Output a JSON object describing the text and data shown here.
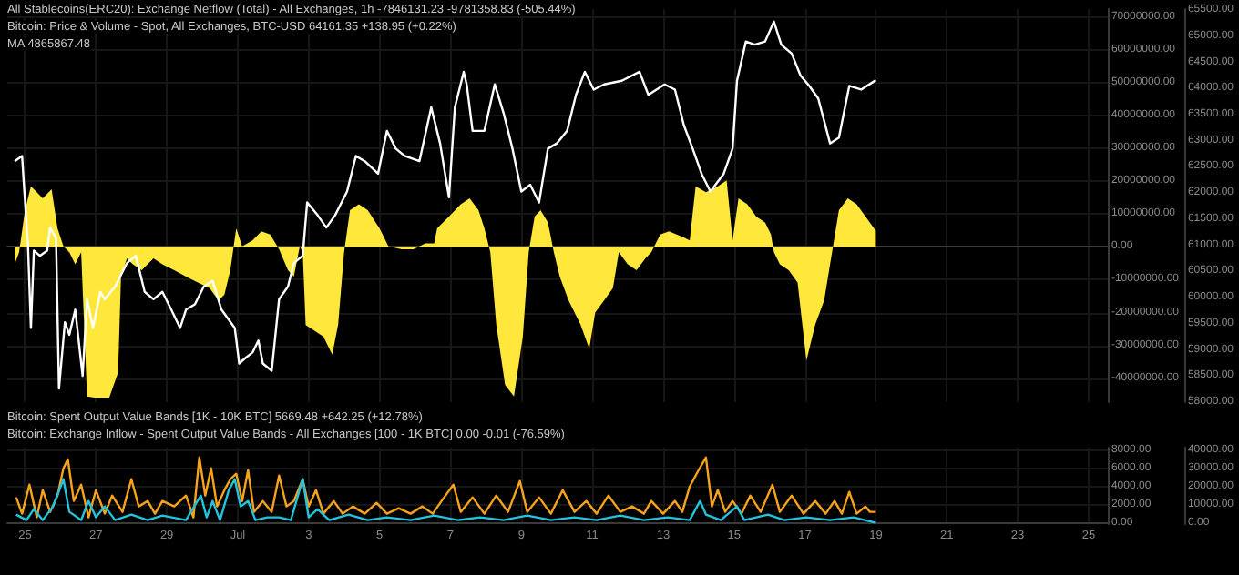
{
  "chart_data": [
    {
      "type": "line",
      "annotations": [
        "All Stablecoins(ERC20): Exchange Netflow (Total) - All Exchanges, 1h -7846131.23 -9781358.83 (-505.44%)",
        "Bitcoin: Price & Volume - Spot, All Exchanges, BTC-USD 64161.35 +138.95 (+0.22%)",
        "MA 4865867.48"
      ],
      "xlim": [
        "--06-24T12:00",
        "--07-25T13:00"
      ],
      "xticks": [
        {
          "value": "--06-25",
          "label": "25"
        },
        {
          "value": "--06-27",
          "label": "27"
        },
        {
          "value": "--06-29",
          "label": "29"
        },
        {
          "value": "--07-01",
          "label": "Jul"
        },
        {
          "value": "--07-03",
          "label": "3"
        },
        {
          "value": "--07-05",
          "label": "5"
        },
        {
          "value": "--07-07",
          "label": "7"
        },
        {
          "value": "--07-09",
          "label": "9"
        },
        {
          "value": "--07-11",
          "label": "11"
        },
        {
          "value": "--07-13",
          "label": "13"
        },
        {
          "value": "--07-15",
          "label": "15"
        },
        {
          "value": "--07-17",
          "label": "17"
        },
        {
          "value": "--07-19",
          "label": "19"
        },
        {
          "value": "--07-21",
          "label": "21"
        },
        {
          "value": "--07-23",
          "label": "23"
        },
        {
          "value": "--07-25",
          "label": "25"
        }
      ],
      "ylim": [
        -47300000,
        72500000
      ],
      "yticks": [
        {
          "value": -40000000,
          "label": "-40000000.00"
        },
        {
          "value": -30000000,
          "label": "-30000000.00"
        },
        {
          "value": -20000000,
          "label": "-20000000.00"
        },
        {
          "value": -10000000,
          "label": "-10000000.00"
        },
        {
          "value": 0,
          "label": "0.00"
        },
        {
          "value": 10000000,
          "label": "10000000.00"
        },
        {
          "value": 20000000,
          "label": "20000000.00"
        },
        {
          "value": 30000000,
          "label": "30000000.00"
        },
        {
          "value": 40000000,
          "label": "40000000.00"
        },
        {
          "value": 50000000,
          "label": "50000000.00"
        },
        {
          "value": 60000000,
          "label": "60000000.00"
        },
        {
          "value": 70000000,
          "label": "70000000.00"
        }
      ],
      "y2lim": [
        58000,
        65520
      ],
      "y2ticks": [
        {
          "value": 58000,
          "label": "58000.00"
        },
        {
          "value": 58500,
          "label": "58500.00"
        },
        {
          "value": 59000,
          "label": "59000.00"
        },
        {
          "value": 59500,
          "label": "59500.00"
        },
        {
          "value": 60000,
          "label": "60000.00"
        },
        {
          "value": 60500,
          "label": "60500.00"
        },
        {
          "value": 61000,
          "label": "61000.00"
        },
        {
          "value": 61500,
          "label": "61500.00"
        },
        {
          "value": 62000,
          "label": "62000.00"
        },
        {
          "value": 62500,
          "label": "62500.00"
        },
        {
          "value": 63000,
          "label": "63000.00"
        },
        {
          "value": 63500,
          "label": "63500.00"
        },
        {
          "value": 64000,
          "label": "64000.00"
        },
        {
          "value": 64500,
          "label": "64500.00"
        },
        {
          "value": 65000,
          "label": "65000.00"
        },
        {
          "value": 65500,
          "label": "65500.00"
        }
      ],
      "tick_labels": "y",
      "grid": true,
      "marker": "none",
      "series": [
        {
          "type": "area",
          "color": "#ffe83b",
          "x": [
            "--06-24T17:00",
            "--06-24T20:00",
            "--06-25T00:00",
            "--06-25T04:00",
            "--06-25T08:00",
            "--06-25T12:00",
            "--06-25T18:00",
            "--06-25T22:00",
            "--06-26T02:00",
            "--06-26T06:00",
            "--06-26T10:00",
            "--06-26T14:00",
            "--06-26T18:00",
            "--06-27T00:00",
            "--06-27T09:00",
            "--06-27T15:00",
            "--06-27T17:00",
            "--06-27T21:00",
            "--06-28T01:00",
            "--06-28T07:00",
            "--06-28T15:00",
            "--06-28T21:00",
            "--06-29T05:00",
            "--06-29T13:00",
            "--06-29T21:00",
            "--06-30T05:00",
            "--06-30T11:00",
            "--06-30T15:00",
            "--06-30T19:00",
            "--06-30T23:00",
            "--07-01T03:00",
            "--07-01T10:00",
            "--07-01T16:00",
            "--07-01T22:00",
            "--07-02T04:00",
            "--07-02T10:00",
            "--07-02T14:00",
            "--07-02T18:00",
            "--07-02T20:00",
            "--07-02T22:00",
            "--07-03T04:00",
            "--07-03T10:00",
            "--07-03T16:00",
            "--07-03T20:00",
            "--07-04T00:00",
            "--07-04T04:00",
            "--07-04T10:00",
            "--07-04T16:00",
            "--07-05T00:00",
            "--07-05T06:00",
            "--07-05T15:00",
            "--07-05T23:00",
            "--07-06T07:00",
            "--07-06T13:00",
            "--07-06T15:00",
            "--07-06T23:00",
            "--07-07T07:00",
            "--07-07T13:00",
            "--07-07T19:00",
            "--07-07T23:00",
            "--07-08T03:00",
            "--07-08T07:00",
            "--07-08T13:00",
            "--07-08T19:00",
            "--07-09T01:00",
            "--07-09T05:00",
            "--07-09T09:00",
            "--07-09T13:00",
            "--07-09T18:00",
            "--07-09T22:00",
            "--07-10T02:00",
            "--07-10T08:00",
            "--07-10T16:00",
            "--07-10T22:00",
            "--07-11T02:00",
            "--07-11T08:00",
            "--07-11T14:00",
            "--07-11T18:00",
            "--07-12T00:00",
            "--07-12T06:00",
            "--07-12T12:00",
            "--07-12T16:00",
            "--07-12T22:00",
            "--07-13T04:00",
            "--07-13T14:00",
            "--07-13T18:00",
            "--07-13T22:00",
            "--07-14T05:00",
            "--07-14T13:00",
            "--07-14T19:00",
            "--07-14T23:00",
            "--07-15T03:00",
            "--07-15T09:00",
            "--07-15T15:00",
            "--07-15T21:00",
            "--07-16T01:00",
            "--07-16T03:00",
            "--07-16T07:00",
            "--07-16T13:00",
            "--07-16T19:00",
            "--07-17T01:00",
            "--07-17T07:00",
            "--07-17T13:00",
            "--07-17T19:00",
            "--07-17T23:00",
            "--07-18T05:00",
            "--07-18T11:00",
            "--07-18T17:00",
            "--07-19T00:00"
          ],
          "values": [
            -5300000,
            -1600000,
            11200000,
            18500000,
            16700000,
            14800000,
            17600000,
            5700000,
            200000,
            -1600000,
            -5300000,
            -1600000,
            -45600000,
            -46000000,
            -46000000,
            -38300000,
            -9000000,
            -3500000,
            -5300000,
            -7100000,
            -3500000,
            -5300000,
            -7100000,
            -9000000,
            -10800000,
            -12600000,
            -16300000,
            -14500000,
            -7100000,
            5700000,
            200000,
            2000000,
            4800000,
            3800000,
            -700000,
            -7100000,
            -9000000,
            200000,
            -1600000,
            -23800000,
            -25500000,
            -27300000,
            -32800000,
            -23600000,
            -1600000,
            11200000,
            13000000,
            11200000,
            5700000,
            200000,
            -700000,
            -700000,
            1100000,
            1100000,
            5700000,
            9300000,
            13000000,
            14800000,
            11200000,
            5700000,
            -1600000,
            -23600000,
            -42000000,
            -45600000,
            -27300000,
            -1600000,
            9300000,
            11200000,
            7500000,
            -1600000,
            -9000000,
            -16300000,
            -23600000,
            -31000000,
            -20000000,
            -16300000,
            -12600000,
            -1600000,
            -5300000,
            -7100000,
            -3500000,
            -1600000,
            3800000,
            4800000,
            2900000,
            2000000,
            18500000,
            16700000,
            18500000,
            20300000,
            2000000,
            14800000,
            13000000,
            9300000,
            7500000,
            3800000,
            -1600000,
            -5300000,
            -7100000,
            -10800000,
            -34600000,
            -23600000,
            -16300000,
            200000,
            11200000,
            14800000,
            13000000,
            9300000,
            4900000
          ]
        },
        {
          "axis": "y2",
          "color": "#ffffff",
          "x": [
            "--06-24T17:00",
            "--06-24T22:00",
            "--06-24T23:00",
            "--06-25T02:00",
            "--06-25T04:00",
            "--06-25T06:00",
            "--06-25T10:00",
            "--06-25T15:00",
            "--06-25T17:00",
            "--06-25T21:00",
            "--06-25T23:00",
            "--06-26T03:00",
            "--06-26T06:00",
            "--06-26T10:00",
            "--06-26T15:00",
            "--06-26T18:00",
            "--06-26T22:00",
            "--06-27T03:00",
            "--06-27T06:00",
            "--06-27T13:00",
            "--06-27T21:00",
            "--06-28T03:00",
            "--06-28T09:00",
            "--06-28T15:00",
            "--06-28T21:00",
            "--06-29T03:00",
            "--06-29T09:00",
            "--06-29T13:00",
            "--06-29T19:00",
            "--06-30T01:00",
            "--06-30T07:00",
            "--06-30T13:00",
            "--06-30T22:00",
            "--07-01T01:00",
            "--07-01T05:00",
            "--07-01T10:00",
            "--07-01T14:00",
            "--07-01T17:00",
            "--07-01T23:00",
            "--07-02T04:00",
            "--07-02T10:00",
            "--07-02T14:00",
            "--07-02T20:00",
            "--07-02T23:00",
            "--07-03T06:00",
            "--07-03T12:00",
            "--07-03T18:00",
            "--07-04T02:00",
            "--07-04T08:00",
            "--07-04T14:00",
            "--07-04T23:00",
            "--07-05T05:00",
            "--07-05T11:00",
            "--07-05T17:00",
            "--07-06T03:00",
            "--07-06T11:00",
            "--07-06T17:00",
            "--07-06T23:00",
            "--07-07T03:00",
            "--07-07T09:00",
            "--07-07T11:00",
            "--07-07T15:00",
            "--07-07T23:00",
            "--07-08T06:00",
            "--07-08T12:00",
            "--07-08T18:00",
            "--07-09T00:00",
            "--07-09T06:00",
            "--07-09T12:00",
            "--07-09T18:00",
            "--07-10T00:00",
            "--07-10T07:00",
            "--07-10T13:00",
            "--07-10T19:00",
            "--07-11T01:00",
            "--07-11T08:00",
            "--07-11T20:00",
            "--07-12T08:00",
            "--07-12T14:00",
            "--07-13T01:00",
            "--07-13T08:00",
            "--07-13T14:00",
            "--07-13T20:00",
            "--07-14T02:00",
            "--07-14T08:00",
            "--07-14T17:00",
            "--07-14T23:00",
            "--07-15T02:00",
            "--07-15T08:00",
            "--07-15T14:00",
            "--07-15T21:00",
            "--07-16T03:00",
            "--07-16T08:00",
            "--07-16T15:00",
            "--07-16T21:00",
            "--07-17T03:00",
            "--07-17T09:00",
            "--07-17T17:00",
            "--07-17T23:00",
            "--07-18T06:00",
            "--07-18T14:00",
            "--07-19T00:00"
          ],
          "values": [
            62610,
            62710,
            62270,
            61000,
            59420,
            60900,
            60800,
            60900,
            61340,
            61140,
            58260,
            59530,
            59290,
            59770,
            58500,
            59970,
            59420,
            60110,
            59970,
            60210,
            60660,
            60800,
            60110,
            59970,
            60110,
            59770,
            59420,
            59770,
            59870,
            60210,
            60320,
            59770,
            59420,
            58740,
            58840,
            58950,
            59180,
            58740,
            58600,
            59970,
            60210,
            60660,
            60800,
            61820,
            61580,
            61340,
            61580,
            62030,
            62710,
            62610,
            62370,
            63190,
            62850,
            62710,
            62610,
            63640,
            62950,
            61920,
            63640,
            64320,
            64080,
            63190,
            63190,
            64080,
            63530,
            62850,
            62030,
            62160,
            61820,
            62850,
            62950,
            63190,
            63880,
            64320,
            63980,
            64080,
            64150,
            64320,
            63880,
            64080,
            63980,
            63300,
            62850,
            62370,
            62030,
            62370,
            62850,
            64150,
            64900,
            64840,
            64900,
            65280,
            64840,
            64670,
            64250,
            64050,
            63810,
            62950,
            63060,
            64050,
            63980,
            64160
          ]
        }
      ]
    },
    {
      "type": "line",
      "annotations": [
        "Bitcoin: Spent Output Value Bands [1K - 10K BTC] 5669.48 +642.25 (+12.78%)",
        "Bitcoin: Exchange Inflow - Spent Output Value Bands - All Exchanges [100 - 1K BTC] 0.00 -0.01 (-76.59%)"
      ],
      "xlim": [
        "--06-24T12:00",
        "--07-25T13:00"
      ],
      "xticks": [
        {
          "value": "--06-25",
          "label": "25"
        },
        {
          "value": "--06-27",
          "label": "27"
        },
        {
          "value": "--06-29",
          "label": "29"
        },
        {
          "value": "--07-01",
          "label": "Jul"
        },
        {
          "value": "--07-03",
          "label": "3"
        },
        {
          "value": "--07-05",
          "label": "5"
        },
        {
          "value": "--07-07",
          "label": "7"
        },
        {
          "value": "--07-09",
          "label": "9"
        },
        {
          "value": "--07-11",
          "label": "11"
        },
        {
          "value": "--07-13",
          "label": "13"
        },
        {
          "value": "--07-15",
          "label": "15"
        },
        {
          "value": "--07-17",
          "label": "17"
        },
        {
          "value": "--07-19",
          "label": "19"
        },
        {
          "value": "--07-21",
          "label": "21"
        },
        {
          "value": "--07-23",
          "label": "23"
        },
        {
          "value": "--07-25",
          "label": "25"
        }
      ],
      "ylim": [
        -140,
        8280
      ],
      "yticks": [
        {
          "value": 0,
          "label": "0.00"
        },
        {
          "value": 2000,
          "label": "2000.00"
        },
        {
          "value": 4000,
          "label": "4000.00"
        },
        {
          "value": 6000,
          "label": "6000.00"
        },
        {
          "value": 8000,
          "label": "8000.00"
        }
      ],
      "y2lim": [
        -700,
        41400
      ],
      "y2ticks": [
        {
          "value": 0,
          "label": "0.00"
        },
        {
          "value": 10000,
          "label": "10000.00"
        },
        {
          "value": 20000,
          "label": "20000.00"
        },
        {
          "value": 30000,
          "label": "30000.00"
        },
        {
          "value": 40000,
          "label": "40000.00"
        }
      ],
      "grid": true,
      "marker": "none",
      "series": [
        {
          "axis": "y2",
          "color": "#f7a21b",
          "x": [
            "--06-24T18:00",
            "--06-24T22:00",
            "--06-25T03:00",
            "--06-25T08:00",
            "--06-25T12:00",
            "--06-25T17:00",
            "--06-25T22:00",
            "--06-26T02:00",
            "--06-26T05:00",
            "--06-26T09:00",
            "--06-26T14:00",
            "--06-26T19:00",
            "--06-27T00:00",
            "--06-27T06:00",
            "--06-27T11:00",
            "--06-27T18:00",
            "--06-28T00:00",
            "--06-28T05:00",
            "--06-28T11:00",
            "--06-28T16:00",
            "--06-28T21:00",
            "--06-29T05:00",
            "--06-29T13:00",
            "--06-29T18:00",
            "--06-29T22:00",
            "--06-30T02:00",
            "--06-30T06:00",
            "--06-30T10:00",
            "--06-30T15:00",
            "--06-30T19:00",
            "--06-30T23:00",
            "--07-01T03:00",
            "--07-01T07:00",
            "--07-01T11:00",
            "--07-01T17:00",
            "--07-01T23:00",
            "--07-02T04:00",
            "--07-02T09:00",
            "--07-02T14:00",
            "--07-02T20:00",
            "--07-03T00:00",
            "--07-03T05:00",
            "--07-03T10:00",
            "--07-03T17:00",
            "--07-03T23:00",
            "--07-04T06:00",
            "--07-04T14:00",
            "--07-04T22:00",
            "--07-05T05:00",
            "--07-05T13:00",
            "--07-05T21:00",
            "--07-06T05:00",
            "--07-06T12:00",
            "--07-06T18:00",
            "--07-07T02:00",
            "--07-07T07:00",
            "--07-07T15:00",
            "--07-07T23:00",
            "--07-08T07:00",
            "--07-08T15:00",
            "--07-08T23:00",
            "--07-09T04:00",
            "--07-09T12:00",
            "--07-09T20:00",
            "--07-10T04:00",
            "--07-10T12:00",
            "--07-10T20:00",
            "--07-11T03:00",
            "--07-11T11:00",
            "--07-11T19:00",
            "--07-12T03:00",
            "--07-12T11:00",
            "--07-12T16:00",
            "--07-13T00:00",
            "--07-13T08:00",
            "--07-13T13:00",
            "--07-13T18:00",
            "--07-14T00:00",
            "--07-14T05:00",
            "--07-14T09:00",
            "--07-14T13:00",
            "--07-14T18:00",
            "--07-14T23:00",
            "--07-15T05:00",
            "--07-15T11:00",
            "--07-15T18:00",
            "--07-16T02:00",
            "--07-16T07:00",
            "--07-16T15:00",
            "--07-16T23:00",
            "--07-17T07:00",
            "--07-17T14:00",
            "--07-17T20:00",
            "--07-18T01:00",
            "--07-18T06:00",
            "--07-18T11:00",
            "--07-18T17:00",
            "--07-18T20:00",
            "--07-19T00:00"
          ],
          "values": [
            14000,
            5000,
            21000,
            3000,
            18000,
            6000,
            15000,
            30000,
            35000,
            12000,
            21000,
            3000,
            18000,
            5000,
            15000,
            6000,
            24000,
            9000,
            12000,
            5000,
            12000,
            9000,
            15000,
            3000,
            36000,
            15000,
            30000,
            9000,
            18000,
            24000,
            27000,
            12000,
            29000,
            6000,
            12000,
            6000,
            26000,
            9000,
            12000,
            24000,
            9000,
            18000,
            5000,
            12000,
            5000,
            9000,
            5000,
            11000,
            5000,
            8000,
            5000,
            9000,
            5000,
            12000,
            21000,
            6000,
            14000,
            5000,
            15000,
            6000,
            23000,
            6000,
            14000,
            5000,
            18000,
            6000,
            12000,
            5000,
            15000,
            6000,
            9000,
            5000,
            12000,
            5000,
            12000,
            6000,
            20000,
            29000,
            36000,
            9000,
            18000,
            6000,
            12000,
            5000,
            15000,
            6000,
            21000,
            6000,
            15000,
            5000,
            12000,
            5000,
            12000,
            5000,
            17000,
            5000,
            9000,
            6000,
            6000
          ]
        },
        {
          "color": "#22c3dd",
          "x": [
            "--06-24T18:00",
            "--06-25T01:00",
            "--06-25T06:00",
            "--06-25T12:00",
            "--06-25T19:00",
            "--06-26T02:00",
            "--06-26T06:00",
            "--06-26T14:00",
            "--06-26T19:00",
            "--06-27T00:00",
            "--06-27T06:00",
            "--06-27T13:00",
            "--06-28T00:00",
            "--06-28T11:00",
            "--06-28T21:00",
            "--06-29T13:00",
            "--06-29T23:00",
            "--06-30T03:00",
            "--06-30T07:00",
            "--06-30T12:00",
            "--06-30T18:00",
            "--06-30T22:00",
            "--07-01T02:00",
            "--07-01T07:00",
            "--07-01T12:00",
            "--07-01T20:00",
            "--07-02T04:00",
            "--07-02T12:00",
            "--07-02T20:00",
            "--07-03T00:00",
            "--07-03T06:00",
            "--07-03T14:00",
            "--07-04T03:00",
            "--07-04T16:00",
            "--07-05T05:00",
            "--07-05T21:00",
            "--07-06T13:00",
            "--07-07T05:00",
            "--07-07T20:00",
            "--07-08T12:00",
            "--07-09T04:00",
            "--07-09T20:00",
            "--07-10T12:00",
            "--07-11T03:00",
            "--07-11T19:00",
            "--07-12T11:00",
            "--07-13T03:00",
            "--07-13T18:00",
            "--07-14T01:00",
            "--07-14T05:00",
            "--07-14T15:00",
            "--07-15T02:00",
            "--07-15T07:00",
            "--07-15T23:00",
            "--07-16T10:00",
            "--07-17T01:00",
            "--07-17T17:00",
            "--07-18T09:00",
            "--07-19T00:00"
          ],
          "values": [
            900,
            300,
            1500,
            300,
            1800,
            4800,
            1200,
            300,
            2400,
            600,
            1800,
            300,
            900,
            300,
            800,
            300,
            3000,
            600,
            2400,
            300,
            3600,
            4800,
            1800,
            2400,
            300,
            600,
            600,
            300,
            4800,
            600,
            1500,
            300,
            900,
            300,
            600,
            300,
            800,
            300,
            600,
            300,
            800,
            300,
            600,
            300,
            800,
            300,
            600,
            300,
            2400,
            900,
            300,
            1800,
            300,
            900,
            300,
            600,
            300,
            600,
            0
          ]
        }
      ]
    }
  ]
}
